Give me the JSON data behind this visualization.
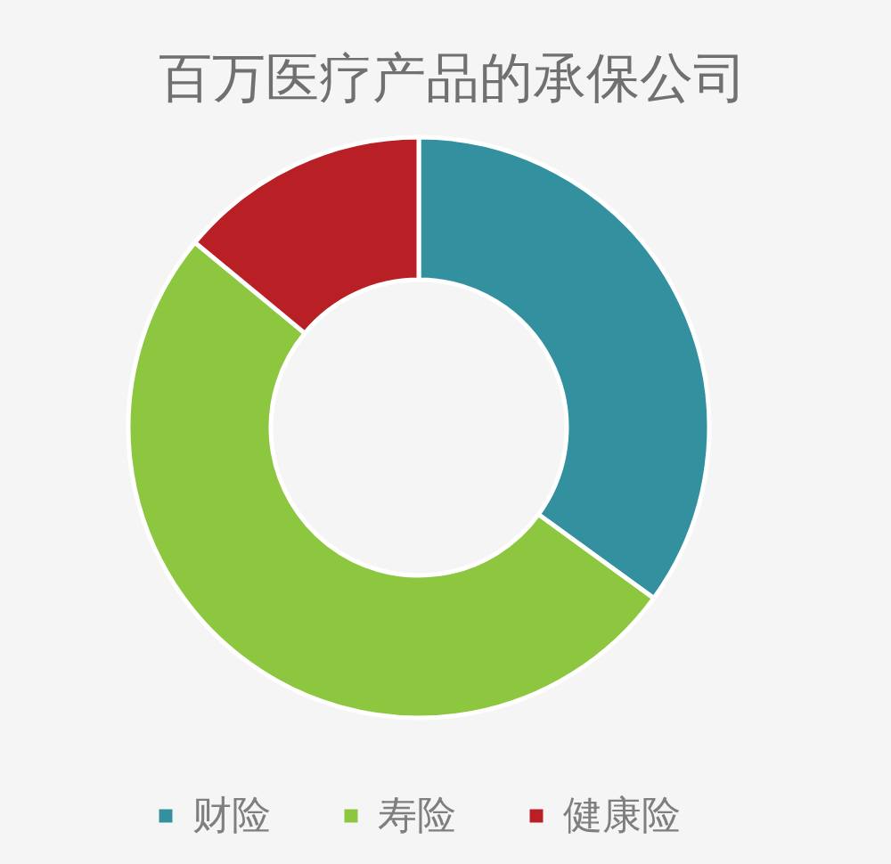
{
  "chart_data": {
    "type": "donut",
    "title": "百万医疗产品的承保公司",
    "categories": [
      "财险",
      "寿险",
      "健康险"
    ],
    "values": [
      35,
      51,
      14
    ],
    "colors": [
      "#33919f",
      "#8dc63f",
      "#b82025"
    ],
    "legend": "bottom"
  }
}
